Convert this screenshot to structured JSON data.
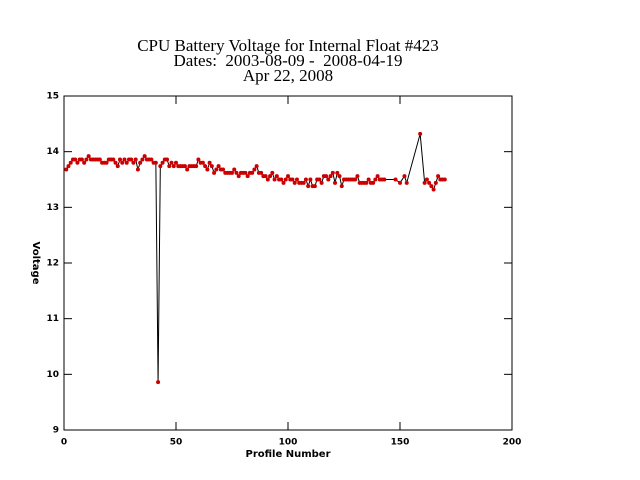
{
  "chart_data": {
    "type": "line",
    "title": "CPU Battery Voltage for Internal Float #423",
    "subtitle": "Dates:  2003-08-09 -  2008-04-19",
    "date": "Apr 22, 2008",
    "xlabel": "Profile Number",
    "ylabel": "Voltage",
    "xlim": [
      0,
      200
    ],
    "xticks": [
      0,
      50,
      100,
      150,
      200
    ],
    "ylim": [
      9,
      15
    ],
    "yticks": [
      9,
      10,
      11,
      12,
      13,
      14,
      15
    ],
    "x": [
      1,
      2,
      3,
      4,
      5,
      6,
      7,
      8,
      9,
      10,
      11,
      12,
      13,
      14,
      15,
      16,
      17,
      18,
      19,
      20,
      21,
      22,
      23,
      24,
      25,
      26,
      27,
      28,
      29,
      30,
      31,
      32,
      33,
      34,
      35,
      36,
      37,
      38,
      39,
      40,
      41,
      42,
      43,
      44,
      45,
      46,
      47,
      48,
      49,
      50,
      51,
      52,
      53,
      54,
      55,
      56,
      57,
      58,
      59,
      60,
      61,
      62,
      63,
      64,
      65,
      66,
      67,
      68,
      69,
      70,
      71,
      72,
      73,
      74,
      75,
      76,
      77,
      78,
      79,
      80,
      81,
      82,
      83,
      84,
      85,
      86,
      87,
      88,
      89,
      90,
      91,
      92,
      93,
      94,
      95,
      96,
      97,
      98,
      99,
      100,
      101,
      102,
      103,
      104,
      105,
      106,
      107,
      108,
      109,
      110,
      111,
      112,
      113,
      114,
      115,
      116,
      117,
      118,
      119,
      120,
      121,
      122,
      123,
      124,
      125,
      126,
      127,
      128,
      129,
      130,
      131,
      132,
      133,
      134,
      135,
      136,
      137,
      138,
      139,
      140,
      141,
      142,
      143,
      148,
      150,
      152,
      153,
      159,
      161,
      162,
      163,
      164,
      165,
      166,
      167,
      168,
      169,
      170
    ],
    "series": [
      {
        "name": "Voltage",
        "color": "#000000",
        "marker_color": "#cc0000",
        "values": [
          13.68,
          13.74,
          13.8,
          13.86,
          13.86,
          13.8,
          13.86,
          13.86,
          13.8,
          13.86,
          13.92,
          13.86,
          13.86,
          13.86,
          13.86,
          13.86,
          13.8,
          13.8,
          13.8,
          13.86,
          13.86,
          13.86,
          13.8,
          13.74,
          13.86,
          13.8,
          13.86,
          13.8,
          13.86,
          13.86,
          13.8,
          13.86,
          13.68,
          13.8,
          13.86,
          13.92,
          13.86,
          13.86,
          13.86,
          13.8,
          13.8,
          9.86,
          13.74,
          13.8,
          13.86,
          13.86,
          13.74,
          13.8,
          13.74,
          13.8,
          13.74,
          13.74,
          13.74,
          13.74,
          13.68,
          13.74,
          13.74,
          13.74,
          13.74,
          13.86,
          13.8,
          13.8,
          13.74,
          13.68,
          13.8,
          13.74,
          13.62,
          13.68,
          13.74,
          13.68,
          13.68,
          13.62,
          13.62,
          13.62,
          13.62,
          13.68,
          13.62,
          13.56,
          13.62,
          13.62,
          13.62,
          13.56,
          13.62,
          13.62,
          13.68,
          13.74,
          13.62,
          13.62,
          13.56,
          13.56,
          13.5,
          13.56,
          13.62,
          13.5,
          13.56,
          13.5,
          13.5,
          13.44,
          13.5,
          13.56,
          13.5,
          13.5,
          13.44,
          13.5,
          13.44,
          13.44,
          13.44,
          13.5,
          13.38,
          13.5,
          13.38,
          13.38,
          13.5,
          13.5,
          13.44,
          13.56,
          13.56,
          13.5,
          13.56,
          13.62,
          13.44,
          13.62,
          13.56,
          13.38,
          13.5,
          13.5,
          13.5,
          13.5,
          13.5,
          13.5,
          13.56,
          13.44,
          13.44,
          13.44,
          13.44,
          13.5,
          13.44,
          13.44,
          13.5,
          13.56,
          13.5,
          13.5,
          13.5,
          13.5,
          13.44,
          13.56,
          13.44,
          14.32,
          13.44,
          13.5,
          13.44,
          13.38,
          13.32,
          13.44,
          13.56,
          13.5,
          13.5,
          13.5
        ]
      }
    ]
  }
}
